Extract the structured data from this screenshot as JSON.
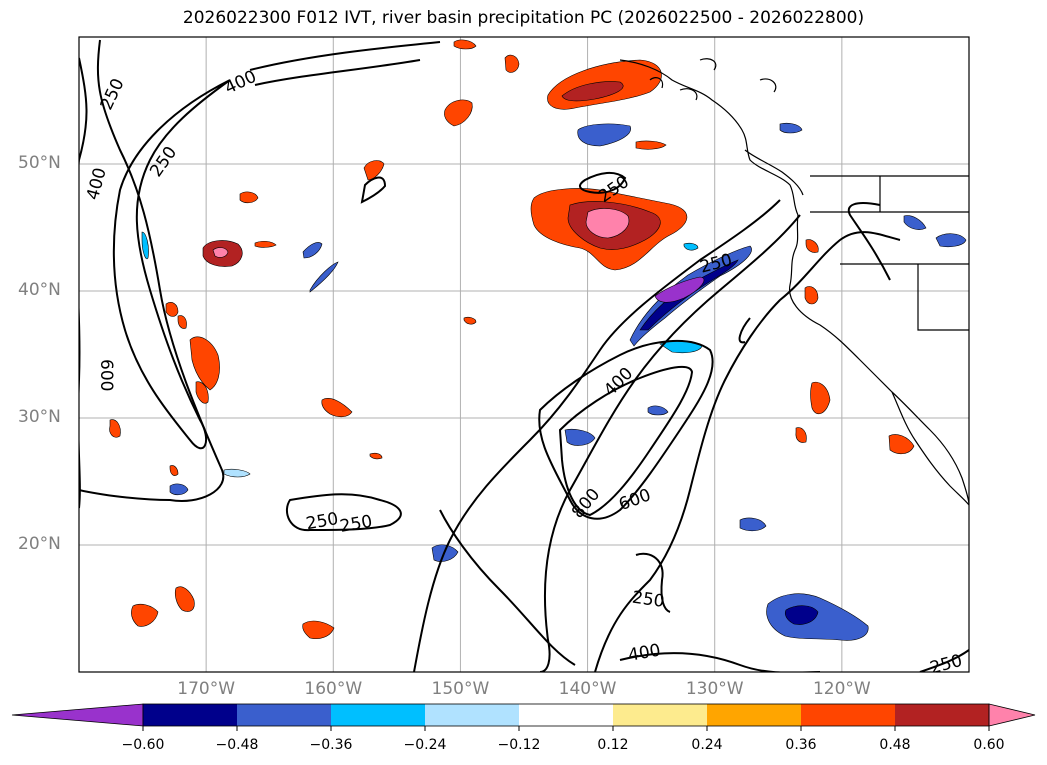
{
  "title": "2026022300 F012 IVT, river basin precipitation PC (2026022500 - 2026022800)",
  "lat_ticks": [
    {
      "label": "50°N",
      "lat": 50
    },
    {
      "label": "40°N",
      "lat": 40
    },
    {
      "label": "30°N",
      "lat": 30
    },
    {
      "label": "20°N",
      "lat": 20
    }
  ],
  "lon_ticks": [
    {
      "label": "170°W",
      "lon": -170
    },
    {
      "label": "160°W",
      "lon": -160
    },
    {
      "label": "150°W",
      "lon": -150
    },
    {
      "label": "140°W",
      "lon": -140
    },
    {
      "label": "130°W",
      "lon": -130
    },
    {
      "label": "120°W",
      "lon": -120
    }
  ],
  "map_extent": {
    "lon": [
      -180,
      -110
    ],
    "lat": [
      10,
      60
    ]
  },
  "colorbar": {
    "levels": [
      "−0.60",
      "−0.48",
      "−0.36",
      "−0.24",
      "−0.12",
      "0.12",
      "0.24",
      "0.36",
      "0.48",
      "0.60"
    ],
    "colors": [
      "#9932cc",
      "#00008b",
      "#3a5fcd",
      "#00bfff",
      "#b0e2ff",
      "#ffffff",
      "#fdeb8e",
      "#ffa500",
      "#ff4500",
      "#b22222",
      "#ff82ab"
    ]
  },
  "contour_labels": [
    "250",
    "400",
    "250",
    "400",
    "250",
    "400",
    "600",
    "400",
    "250",
    "800",
    "600",
    "250",
    "250",
    "250",
    "400",
    "250"
  ],
  "colors": {
    "text": "#000000",
    "tick_label": "#808080",
    "grid": "#b0b0b0"
  }
}
